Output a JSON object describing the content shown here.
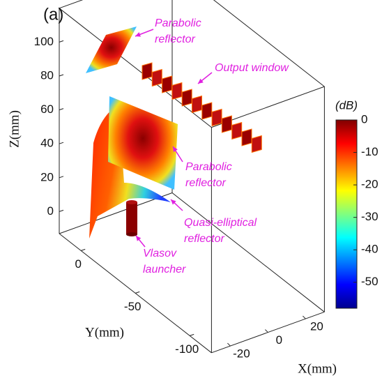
{
  "chart_data": {
    "type": "surface3d",
    "panel_label": "(a)",
    "xlabel": "X(mm)",
    "ylabel": "Y(mm)",
    "zlabel": "Z(mm)",
    "xlim": [
      -30,
      30
    ],
    "xticks": [
      -20,
      0,
      20
    ],
    "ylim": [
      20,
      -120
    ],
    "yticks": [
      0,
      -50,
      -100
    ],
    "zlim": [
      -13,
      120
    ],
    "zticks": [
      0,
      20,
      40,
      60,
      80,
      100
    ],
    "colorbar": {
      "label": "(dB)",
      "lim": [
        -58,
        0
      ],
      "ticks": [
        0,
        -10,
        -20,
        -30,
        -40,
        -50
      ],
      "colormap": "jet"
    },
    "annotation_color": "#e020e0",
    "annotations": [
      {
        "lines": [
          "Parabolic",
          "reflector"
        ]
      },
      {
        "lines": [
          "Output window"
        ]
      },
      {
        "lines": [
          "Parabolic",
          "reflector"
        ]
      },
      {
        "lines": [
          "Quasi-elliptical",
          "reflector"
        ]
      },
      {
        "lines": [
          "Vlasov",
          "launcher"
        ]
      }
    ]
  }
}
